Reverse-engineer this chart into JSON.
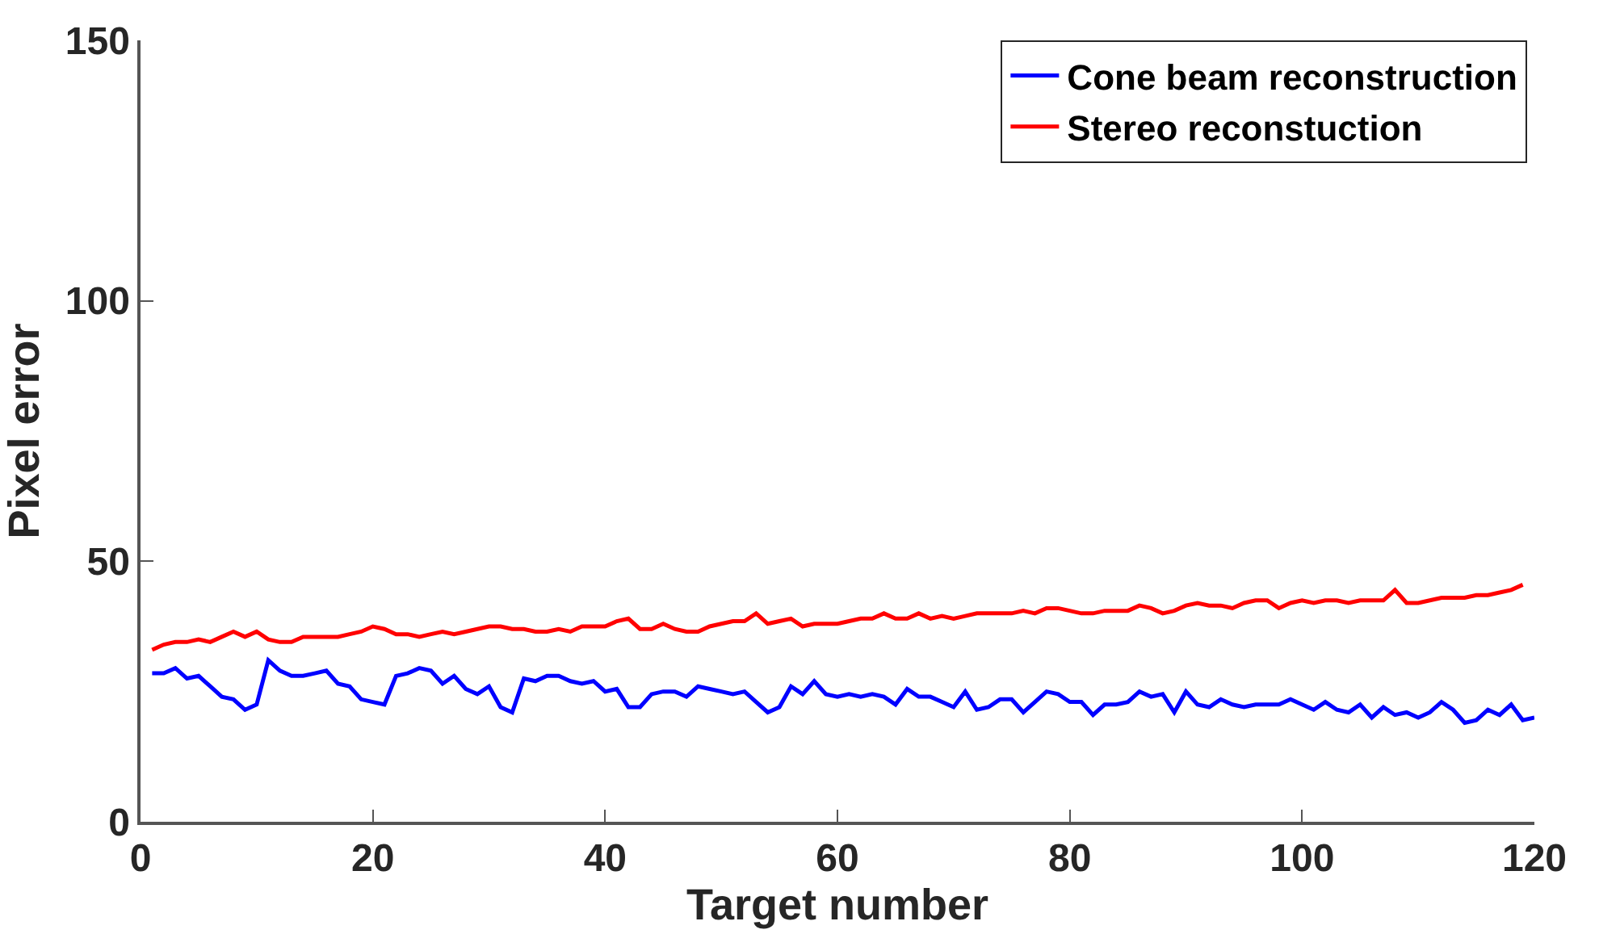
{
  "chart_data": {
    "type": "line",
    "xlabel": "Target number",
    "ylabel": "Pixel error",
    "xlim": [
      0,
      120
    ],
    "xticks": [
      0,
      20,
      40,
      60,
      80,
      100,
      120
    ],
    "ylim": [
      0,
      150
    ],
    "yticks": [
      0,
      50,
      100,
      150
    ],
    "legend": "top right",
    "marker": "none",
    "line_style": "solid",
    "series": [
      {
        "name": "Cone beam reconstruction",
        "color": "#0000ff",
        "x": [
          1,
          2,
          3,
          4,
          5,
          6,
          7,
          8,
          9,
          10,
          11,
          12,
          13,
          14,
          15,
          16,
          17,
          18,
          19,
          20,
          21,
          22,
          23,
          24,
          25,
          26,
          27,
          28,
          29,
          30,
          31,
          32,
          33,
          34,
          35,
          36,
          37,
          38,
          39,
          40,
          41,
          42,
          43,
          44,
          45,
          46,
          47,
          48,
          49,
          50,
          51,
          52,
          53,
          54,
          55,
          56,
          57,
          58,
          59,
          60,
          61,
          62,
          63,
          64,
          65,
          66,
          67,
          68,
          69,
          70,
          71,
          72,
          73,
          74,
          75,
          76,
          77,
          78,
          79,
          80,
          81,
          82,
          83,
          84,
          85,
          86,
          87,
          88,
          89,
          90,
          91,
          92,
          93,
          94,
          95,
          96,
          97,
          98,
          99,
          100,
          101,
          102,
          103,
          104,
          105,
          106,
          107,
          108,
          109,
          110,
          111,
          112,
          113,
          114,
          115,
          116,
          117,
          118,
          119,
          120
        ],
        "values": [
          28.5,
          28.5,
          29.5,
          27.5,
          28,
          26,
          24,
          23.5,
          21.5,
          22.5,
          31,
          29,
          28,
          28,
          28.5,
          29,
          26.5,
          26,
          23.5,
          23,
          22.5,
          28,
          28.5,
          29.5,
          29,
          26.5,
          28,
          25.5,
          24.5,
          26,
          22,
          21,
          27.5,
          27,
          28,
          28,
          27,
          26.5,
          27,
          25,
          25.5,
          22,
          22,
          24.5,
          25,
          25,
          24,
          26,
          25.5,
          25,
          24.5,
          25,
          23,
          21,
          22,
          26,
          24.5,
          27,
          24.5,
          24,
          24.5,
          24,
          24.5,
          24,
          22.5,
          25.5,
          24,
          24,
          23,
          22,
          25,
          21.5,
          22,
          23.5,
          23.5,
          21,
          23,
          25,
          24.5,
          23,
          23,
          20.5,
          22.5,
          22.5,
          23,
          25,
          24,
          24.5,
          21,
          25,
          22.5,
          22,
          23.5,
          22.5,
          22,
          22.5,
          22.5,
          22.5,
          23.5,
          22.5,
          21.5,
          23,
          21.5,
          21,
          22.5,
          20,
          22,
          20.5,
          21,
          20,
          21,
          23,
          21.5,
          19,
          19.5,
          21.5,
          20.5,
          22.5,
          19.5,
          20
        ]
      },
      {
        "name": "Stereo reconstuction",
        "color": "#ff0000",
        "x": [
          1,
          2,
          3,
          4,
          5,
          6,
          7,
          8,
          9,
          10,
          11,
          12,
          13,
          14,
          15,
          16,
          17,
          18,
          19,
          20,
          21,
          22,
          23,
          24,
          25,
          26,
          27,
          28,
          29,
          30,
          31,
          32,
          33,
          34,
          35,
          36,
          37,
          38,
          39,
          40,
          41,
          42,
          43,
          44,
          45,
          46,
          47,
          48,
          49,
          50,
          51,
          52,
          53,
          54,
          55,
          56,
          57,
          58,
          59,
          60,
          61,
          62,
          63,
          64,
          65,
          66,
          67,
          68,
          69,
          70,
          71,
          72,
          73,
          74,
          75,
          76,
          77,
          78,
          79,
          80,
          81,
          82,
          83,
          84,
          85,
          86,
          87,
          88,
          89,
          90,
          91,
          92,
          93,
          94,
          95,
          96,
          97,
          98,
          99,
          100,
          101,
          102,
          103,
          104,
          105,
          106,
          107,
          108,
          109,
          110,
          111,
          112,
          113,
          114,
          115,
          116,
          117,
          118,
          119
        ],
        "values": [
          33,
          34,
          34.5,
          34.5,
          35,
          34.5,
          35.5,
          36.5,
          35.5,
          36.5,
          35,
          34.5,
          34.5,
          35.5,
          35.5,
          35.5,
          35.5,
          36,
          36.5,
          37.5,
          37,
          36,
          36,
          35.5,
          36,
          36.5,
          36,
          36.5,
          37,
          37.5,
          37.5,
          37,
          37,
          36.5,
          36.5,
          37,
          36.5,
          37.5,
          37.5,
          37.5,
          38.5,
          39,
          37,
          37,
          38,
          37,
          36.5,
          36.5,
          37.5,
          38,
          38.5,
          38.5,
          40,
          38,
          38.5,
          39,
          37.5,
          38,
          38,
          38,
          38.5,
          39,
          39,
          40,
          39,
          39,
          40,
          39,
          39.5,
          39,
          39.5,
          40,
          40,
          40,
          40,
          40.5,
          40,
          41,
          41,
          40.5,
          40,
          40,
          40.5,
          40.5,
          40.5,
          41.5,
          41,
          40,
          40.5,
          41.5,
          42,
          41.5,
          41.5,
          41,
          42,
          42.5,
          42.5,
          41,
          42,
          42.5,
          42,
          42.5,
          42.5,
          42,
          42.5,
          42.5,
          42.5,
          44.5,
          42,
          42,
          42.5,
          43,
          43,
          43,
          43.5,
          43.5,
          44,
          44.5,
          45.5
        ]
      }
    ]
  }
}
